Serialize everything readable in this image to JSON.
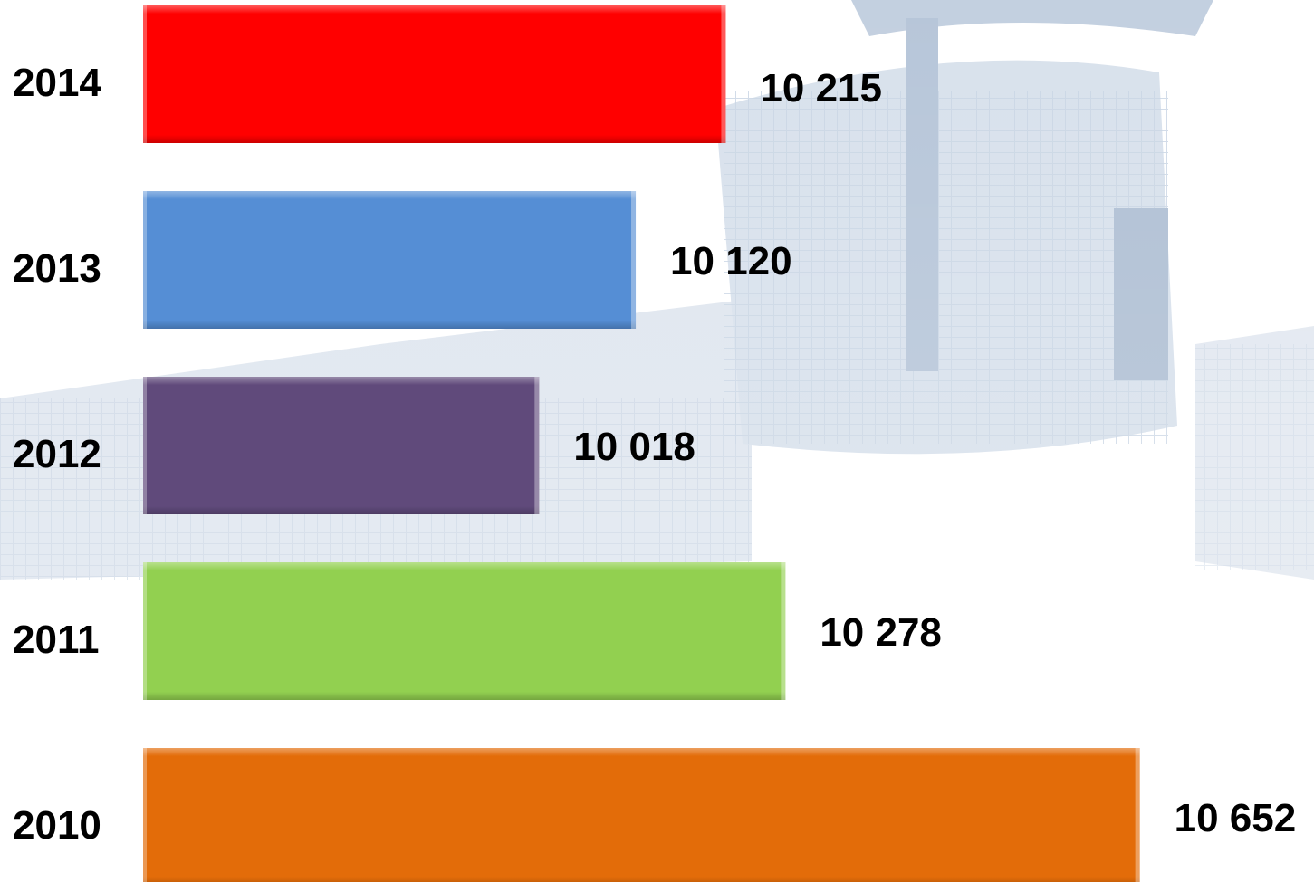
{
  "chart_data": {
    "type": "bar",
    "orientation": "horizontal",
    "categories": [
      "2014",
      "2013",
      "2012",
      "2011",
      "2010"
    ],
    "values": [
      10215,
      10120,
      10018,
      10278,
      10652
    ],
    "value_labels": [
      "10 215",
      "10 120",
      "10 018",
      "10 278",
      "10 652"
    ],
    "bar_colors": [
      "#ff0000",
      "#558ed5",
      "#604a7b",
      "#92d050",
      "#e36c09"
    ],
    "xlim": [
      9600,
      10660
    ],
    "grid": false,
    "legend": "none"
  },
  "background": {
    "description_icon": "building-photo-watermark",
    "tint": "#b8c8dc"
  }
}
